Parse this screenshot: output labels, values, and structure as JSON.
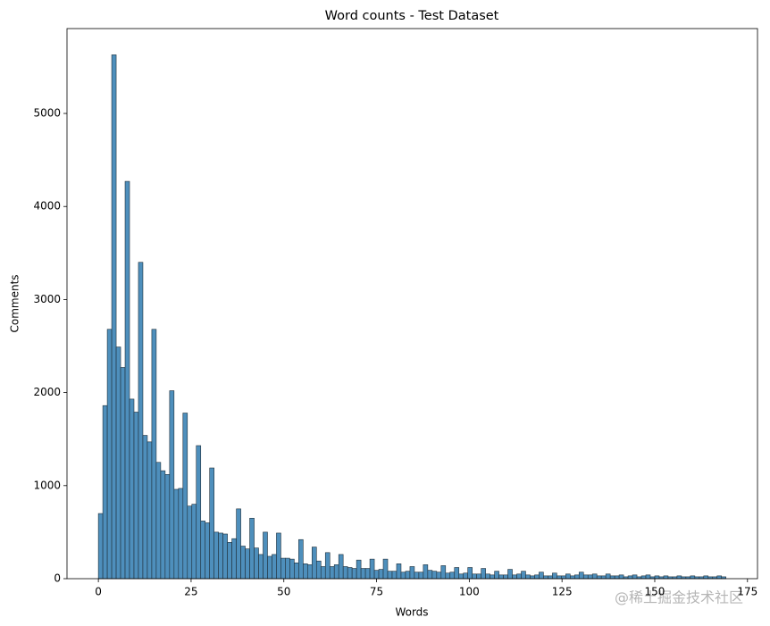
{
  "chart_data": {
    "type": "histogram",
    "title": "Word counts - Test Dataset",
    "xlabel": "Words",
    "ylabel": "Comments",
    "color": "#4e8fbc",
    "edgecolor": "#1f2f3a",
    "bins": [
      0,
      1.2,
      2.4,
      3.6,
      4.8,
      6,
      7.2,
      8.4,
      9.6,
      10.8,
      12,
      13.2,
      14.4,
      15.6,
      16.8,
      18,
      19.2,
      20.4,
      21.6,
      22.8,
      24,
      25.2,
      26.4,
      27.6,
      28.8,
      30,
      31.2,
      32.4,
      33.6,
      34.8,
      36,
      37.2,
      38.4,
      39.6,
      40.8,
      42,
      43.2,
      44.4,
      45.6,
      46.8,
      48,
      49.2,
      50.4,
      51.6,
      52.8,
      54,
      55.2,
      56.4,
      57.6,
      58.8,
      60,
      61.2,
      62.4,
      63.6,
      64.8,
      66,
      67.2,
      68.4,
      69.6,
      70.8,
      72,
      73.2,
      74.4,
      75.6,
      76.8,
      78,
      79.2,
      80.4,
      81.6,
      82.8,
      84,
      85.2,
      86.4,
      87.6,
      88.8,
      90,
      91.2,
      92.4,
      93.6,
      94.8,
      96,
      97.2,
      98.4,
      99.6,
      100.8,
      102,
      103.2,
      104.4,
      105.6,
      106.8,
      108,
      109.2,
      110.4,
      111.6,
      112.8,
      114,
      115.2,
      116.4,
      117.6,
      118.8,
      120,
      121.2,
      122.4,
      123.6,
      124.8,
      126,
      127.2,
      128.4,
      129.6,
      130.8,
      132,
      133.2,
      134.4,
      135.6,
      136.8,
      138,
      139.2,
      140.4,
      141.6,
      142.8,
      144,
      145.2,
      146.4,
      147.6,
      148.8,
      150,
      151.2,
      152.4,
      153.6,
      154.8,
      156,
      157.2,
      158.4,
      159.6,
      160.8,
      162,
      163.2,
      164.4,
      165.6,
      166.8,
      168,
      169.2
    ],
    "counts": [
      700,
      1860,
      2680,
      5630,
      2490,
      2270,
      4270,
      1930,
      1790,
      3400,
      1540,
      1470,
      2680,
      1250,
      1160,
      1120,
      2020,
      960,
      970,
      1780,
      780,
      800,
      1430,
      620,
      600,
      1190,
      500,
      490,
      480,
      390,
      430,
      750,
      350,
      320,
      650,
      330,
      260,
      500,
      240,
      260,
      490,
      220,
      220,
      210,
      170,
      420,
      160,
      150,
      340,
      190,
      130,
      280,
      130,
      150,
      260,
      130,
      120,
      110,
      200,
      110,
      110,
      210,
      90,
      100,
      210,
      80,
      80,
      160,
      70,
      80,
      130,
      70,
      70,
      150,
      90,
      80,
      70,
      140,
      60,
      70,
      120,
      50,
      60,
      120,
      50,
      50,
      110,
      50,
      40,
      80,
      40,
      40,
      100,
      40,
      50,
      80,
      40,
      30,
      40,
      70,
      30,
      30,
      60,
      30,
      30,
      50,
      30,
      40,
      70,
      40,
      40,
      50,
      30,
      30,
      50,
      30,
      30,
      40,
      20,
      30,
      40,
      20,
      30,
      40,
      20,
      30,
      20,
      30,
      20,
      20,
      30,
      20,
      20,
      30,
      20,
      20,
      30,
      20,
      20,
      30,
      20
    ],
    "xlim": [
      -8.46,
      177.7
    ],
    "xticks": [
      0,
      25,
      50,
      75,
      100,
      125,
      150,
      175
    ],
    "ylim": [
      0,
      5912
    ],
    "yticks": [
      0,
      1000,
      2000,
      3000,
      4000,
      5000
    ],
    "watermark": "@稀土掘金技术社区"
  }
}
